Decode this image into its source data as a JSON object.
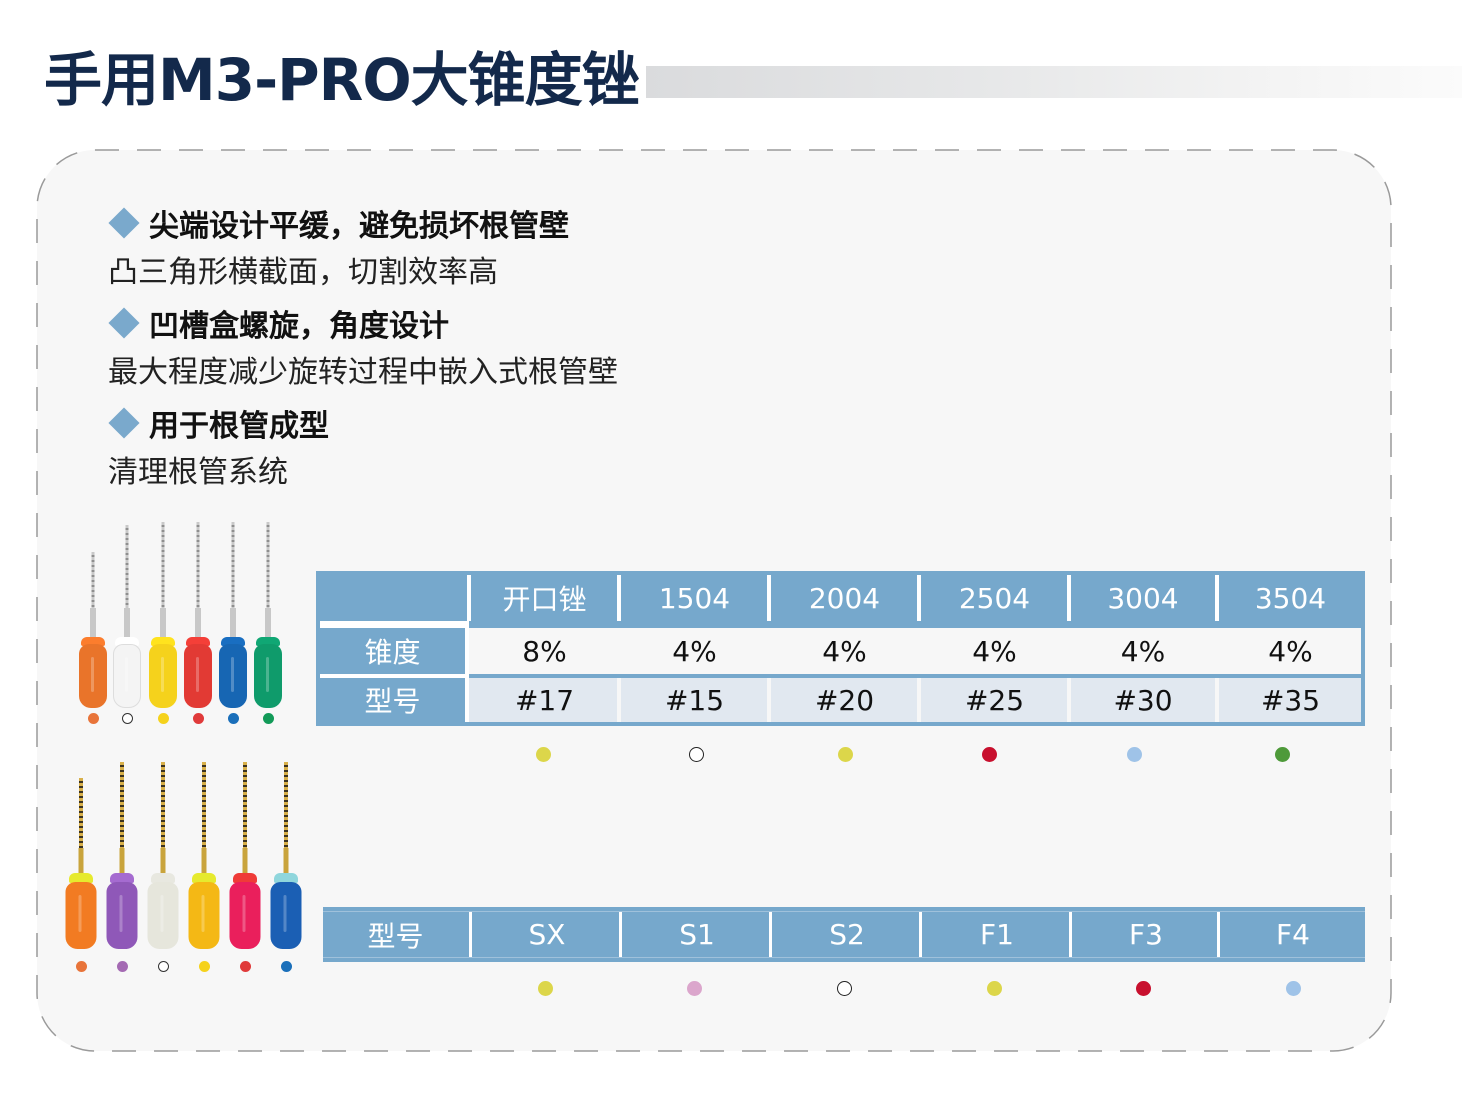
{
  "title": "手用M3-PRO大锥度锉",
  "features": [
    {
      "heading": "尖端设计平缓，避免损坏根管壁",
      "description": "凸三角形横截面，切割效率高"
    },
    {
      "heading": "凹槽盒螺旋，角度设计",
      "description": "最大程度减少旋转过程中嵌入式根管壁"
    },
    {
      "heading": "用于根管成型",
      "description": "清理根管系统"
    }
  ],
  "image_top": {
    "handles": [
      "#e9742a",
      "#f4f4f4",
      "#f5d21c",
      "#e23a34",
      "#1766b3",
      "#0f9b6b"
    ],
    "swatches": [
      "#e8743a",
      "hollow",
      "#f5d21c",
      "#e03a3a",
      "#1a6fba",
      "#129a58"
    ]
  },
  "image_bottom": {
    "handles": [
      "#f27b22",
      "#8f58b8",
      "#e6e6dc",
      "#f4b815",
      "#ea1f5c",
      "#1b5fb4"
    ],
    "caps": [
      "#e6ea2e",
      "#a56bd0",
      "#e8e8e0",
      "#e6ea2e",
      "#ef3b38",
      "#8fd6dc"
    ],
    "swatches": [
      "#e8743a",
      "#a46ab3",
      "hollow",
      "#f5d21c",
      "#e03a3a",
      "#1a6fba"
    ]
  },
  "table1": {
    "headers": [
      "",
      "开口锉",
      "1504",
      "2004",
      "2504",
      "3004",
      "3504"
    ],
    "rows": [
      {
        "label": "锥度",
        "values": [
          "8%",
          "4%",
          "4%",
          "4%",
          "4%",
          "4%"
        ]
      },
      {
        "label": "型号",
        "values": [
          "#17",
          "#15",
          "#20",
          "#25",
          "#30",
          "#35"
        ]
      }
    ],
    "color_dots": [
      "#dcd64a",
      "hollow",
      "#dcd64a",
      "#c8102e",
      "#9fc3e8",
      "#4e9a3a"
    ]
  },
  "table2": {
    "label": "型号",
    "values": [
      "SX",
      "S1",
      "S2",
      "F1",
      "F3",
      "F4"
    ],
    "color_dots": [
      "#dcd64a",
      "#dba6cc",
      "hollow",
      "#dcd64a",
      "#c8102e",
      "#9fc3e8"
    ]
  },
  "colors": {
    "title": "#13294b",
    "accent": "#76a8cc",
    "diamond": "#7aa9cc",
    "card_bg": "#f7f7f7",
    "row_alt": "#e1e8f0"
  }
}
